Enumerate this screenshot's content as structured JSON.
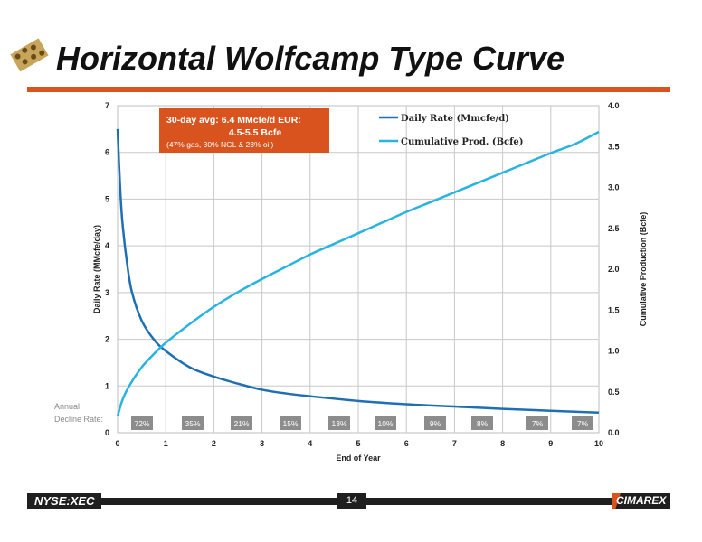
{
  "header": {
    "title": "Horizontal Wolfcamp Type Curve"
  },
  "footer": {
    "ticker": "NYSE:XEC",
    "page": "14",
    "brand": "CIMAREX"
  },
  "colors": {
    "accent": "#d9531e",
    "daily": "#1f6fb5",
    "cumulative": "#27b4e2",
    "badge": "#8c8c8c"
  },
  "annotation": {
    "line1": "30-day avg:  6.4 MMcfe/d EUR:",
    "line2": "4.5-5.5 Bcfe",
    "line3": "(47% gas, 30% NGL & 23% oil)"
  },
  "decline": {
    "label_line1": "Annual",
    "label_line2": "Decline Rate:",
    "rates": [
      "72%",
      "35%",
      "21%",
      "15%",
      "13%",
      "10%",
      "9%",
      "8%",
      "7%",
      "7%"
    ]
  },
  "chart_data": {
    "type": "line",
    "xlabel": "End of Year",
    "ylabel": "Daily Rate (MMcfe/day)",
    "y2label": "Cumulative Production (Bcfe)",
    "xlim": [
      0,
      10
    ],
    "ylim": [
      0,
      7
    ],
    "y2lim": [
      0,
      4
    ],
    "x_ticks": [
      "0",
      "1",
      "2",
      "3",
      "4",
      "5",
      "6",
      "7",
      "8",
      "9",
      "10"
    ],
    "y_ticks": [
      "0",
      "1",
      "2",
      "3",
      "4",
      "5",
      "6",
      "7"
    ],
    "y2_ticks": [
      "0.0",
      "0.5",
      "1.0",
      "1.5",
      "2.0",
      "2.5",
      "3.0",
      "3.5",
      "4.0"
    ],
    "grid": true,
    "legend_position": "top-right",
    "series": [
      {
        "name": "Daily Rate (Mmcfe/d)",
        "axis": "left",
        "x": [
          0,
          0.05,
          0.1,
          0.2,
          0.3,
          0.5,
          0.75,
          1,
          1.5,
          2,
          2.5,
          3,
          3.5,
          4,
          5,
          6,
          7,
          8,
          9,
          10
        ],
        "y": [
          6.5,
          5.3,
          4.5,
          3.6,
          3.0,
          2.4,
          2.0,
          1.75,
          1.4,
          1.2,
          1.05,
          0.92,
          0.84,
          0.78,
          0.68,
          0.61,
          0.56,
          0.51,
          0.47,
          0.43
        ]
      },
      {
        "name": "Cumulative Prod. (Bcfe)",
        "axis": "right",
        "x": [
          0,
          0.1,
          0.25,
          0.5,
          0.75,
          1,
          1.5,
          2,
          2.5,
          3,
          3.5,
          4,
          4.5,
          5,
          5.5,
          6,
          6.5,
          7,
          7.5,
          8,
          8.5,
          9,
          9.5,
          10
        ],
        "y": [
          0.2,
          0.4,
          0.58,
          0.8,
          0.96,
          1.1,
          1.33,
          1.54,
          1.72,
          1.88,
          2.03,
          2.18,
          2.31,
          2.44,
          2.57,
          2.7,
          2.82,
          2.94,
          3.06,
          3.18,
          3.3,
          3.42,
          3.53,
          3.68
        ]
      }
    ]
  }
}
